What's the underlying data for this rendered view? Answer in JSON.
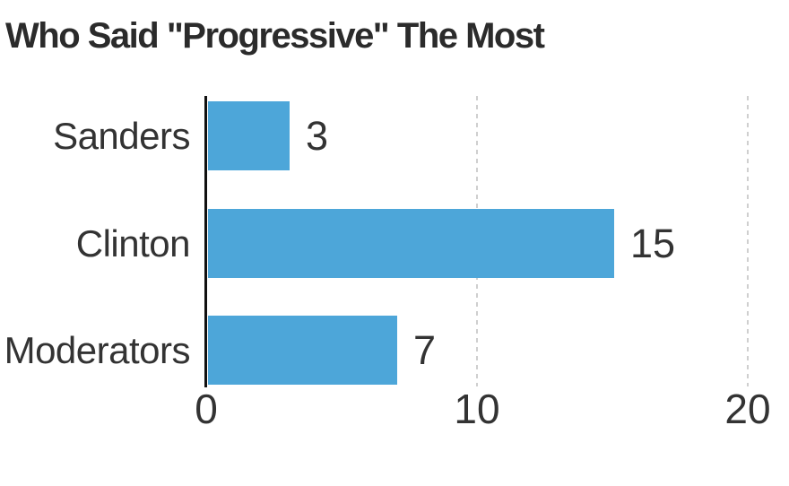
{
  "chart_data": {
    "type": "bar",
    "orientation": "horizontal",
    "title": "Who Said \"Progressive\" The Most",
    "categories": [
      "Sanders",
      "Clinton",
      "Moderators"
    ],
    "values": [
      3,
      15,
      7
    ],
    "value_labels": [
      "3",
      "15",
      "7"
    ],
    "xlim": [
      0,
      20
    ],
    "x_ticks": [
      0,
      10,
      20
    ],
    "tick_labels": [
      "0",
      "10",
      "20"
    ],
    "grid": "vertical dashed gridlines at 10 and 20, bars drawn over gridlines",
    "legend_position": "none",
    "colors": {
      "bar": "#4DA6D9",
      "title_text": "#2b2b2b",
      "label_text": "#333333",
      "axis_line": "#111111",
      "gridline": "#cfcfcf",
      "background": "#ffffff"
    }
  }
}
